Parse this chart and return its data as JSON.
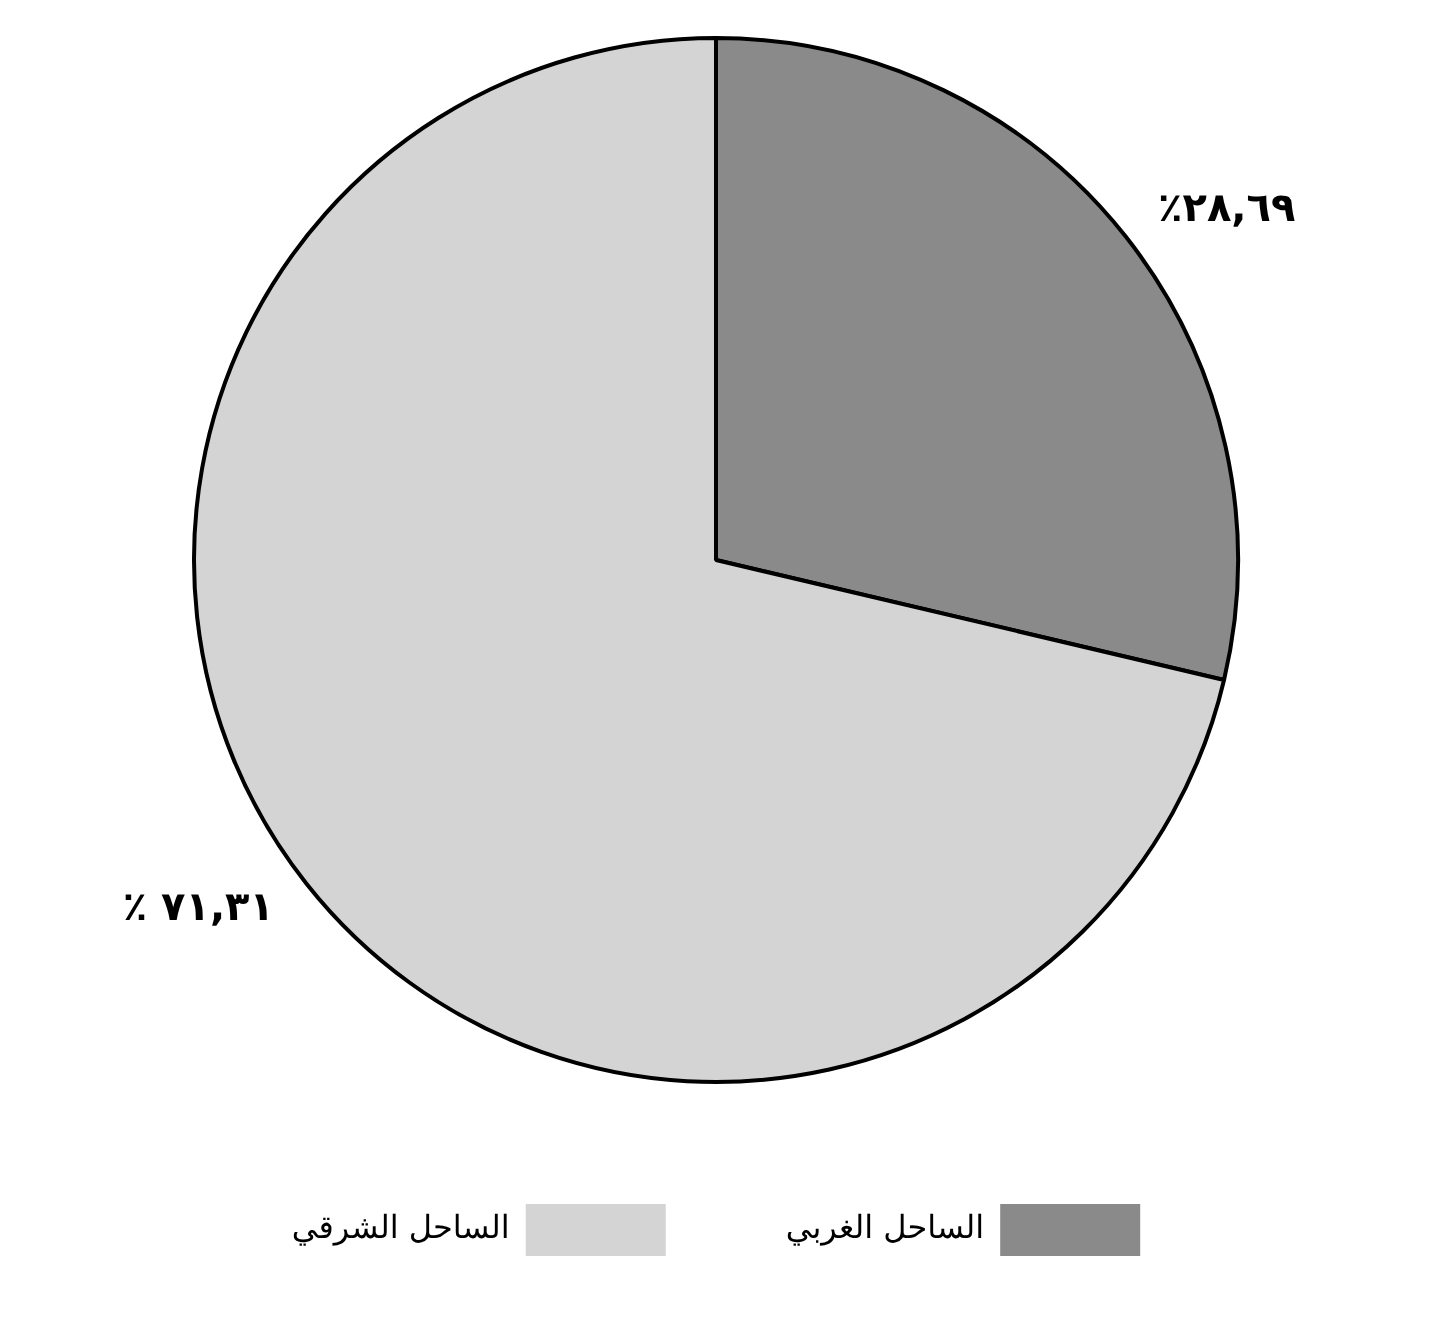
{
  "chart_data": {
    "type": "pie",
    "categories": [
      "الساحل الغربي",
      "الساحل الشرقي"
    ],
    "values": [
      28.69,
      71.31
    ],
    "colors": [
      "#8a8a8a",
      "#d4d4d4"
    ],
    "value_labels": [
      "٪٢٨,٦٩",
      "٪ ٧١,٣١"
    ],
    "legend": "bottom"
  }
}
